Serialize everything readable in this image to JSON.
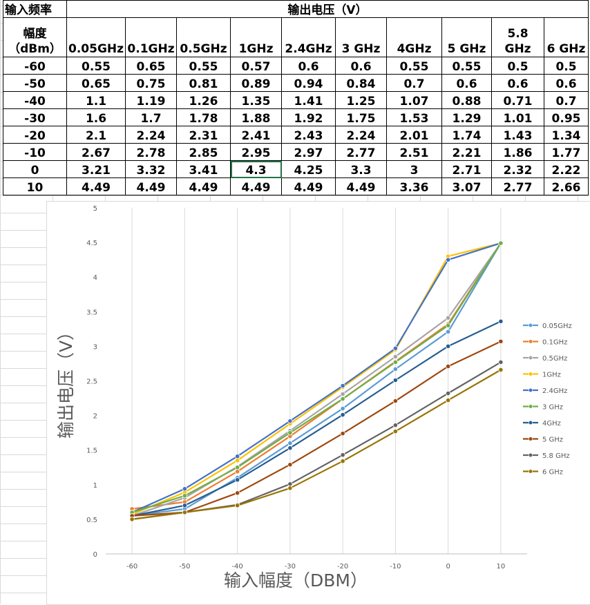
{
  "table": {
    "header_input": "输入频率",
    "header_output": "输出电压（V）",
    "row_header": "幅度（dBm）",
    "frequencies": [
      "0.05GHz",
      "0.1GHz",
      "0.5GHz",
      "1GHz",
      "2.4GHz",
      "3 GHz",
      "4GHz",
      "5 GHz",
      "5.8 GHz",
      "6 GHz"
    ],
    "rows": [
      {
        "amp": "-60",
        "values": [
          "0.55",
          "0.65",
          "0.55",
          "0.57",
          "0.6",
          "0.6",
          "0.55",
          "0.55",
          "0.5",
          "0.5"
        ]
      },
      {
        "amp": "-50",
        "values": [
          "0.65",
          "0.75",
          "0.81",
          "0.89",
          "0.94",
          "0.84",
          "0.7",
          "0.6",
          "0.6",
          "0.6"
        ]
      },
      {
        "amp": "-40",
        "values": [
          "1.1",
          "1.19",
          "1.26",
          "1.35",
          "1.41",
          "1.25",
          "1.07",
          "0.88",
          "0.71",
          "0.7"
        ]
      },
      {
        "amp": "-30",
        "values": [
          "1.6",
          "1.7",
          "1.78",
          "1.88",
          "1.92",
          "1.75",
          "1.53",
          "1.29",
          "1.01",
          "0.95"
        ]
      },
      {
        "amp": "-20",
        "values": [
          "2.1",
          "2.24",
          "2.31",
          "2.41",
          "2.43",
          "2.24",
          "2.01",
          "1.74",
          "1.43",
          "1.34"
        ]
      },
      {
        "amp": "-10",
        "values": [
          "2.67",
          "2.78",
          "2.85",
          "2.95",
          "2.97",
          "2.77",
          "2.51",
          "2.21",
          "1.86",
          "1.77"
        ]
      },
      {
        "amp": "0",
        "values": [
          "3.21",
          "3.32",
          "3.41",
          "4.3",
          "4.25",
          "3.3",
          "3",
          "2.71",
          "2.32",
          "2.22"
        ]
      },
      {
        "amp": "10",
        "values": [
          "4.49",
          "4.49",
          "4.49",
          "4.49",
          "4.49",
          "4.49",
          "3.36",
          "3.07",
          "2.77",
          "2.66"
        ]
      }
    ],
    "selected_cell": "0,1GHz"
  },
  "chart_data": {
    "type": "line",
    "title": "",
    "xlabel": "输入幅度（DBM）",
    "ylabel": "输出电压（V）",
    "x": [
      -60,
      -50,
      -40,
      -30,
      -20,
      -10,
      0,
      10
    ],
    "x_ticks": [
      "-60",
      "-50",
      "-40",
      "-30",
      "-20",
      "-10",
      "0",
      "10"
    ],
    "y_ticks": [
      "0",
      "0.5",
      "1",
      "1.5",
      "2",
      "2.5",
      "3",
      "3.5",
      "4",
      "4.5",
      "5"
    ],
    "ylim": [
      0,
      5
    ],
    "grid": "vertical",
    "legend_position": "right",
    "series": [
      {
        "name": "0.05GHz",
        "color": "#5B9BD5",
        "values": [
          0.55,
          0.65,
          1.1,
          1.6,
          2.1,
          2.67,
          3.21,
          4.49
        ]
      },
      {
        "name": "0.1GHz",
        "color": "#ED7D31",
        "values": [
          0.65,
          0.75,
          1.19,
          1.7,
          2.24,
          2.78,
          3.32,
          4.49
        ]
      },
      {
        "name": "0.5GHz",
        "color": "#A5A5A5",
        "values": [
          0.55,
          0.81,
          1.26,
          1.78,
          2.31,
          2.85,
          3.41,
          4.49
        ]
      },
      {
        "name": "1GHz",
        "color": "#FFC000",
        "values": [
          0.57,
          0.89,
          1.35,
          1.88,
          2.41,
          2.95,
          4.3,
          4.49
        ]
      },
      {
        "name": "2.4GHz",
        "color": "#4472C4",
        "values": [
          0.6,
          0.94,
          1.41,
          1.92,
          2.43,
          2.97,
          4.25,
          4.49
        ]
      },
      {
        "name": "3 GHz",
        "color": "#70AD47",
        "values": [
          0.6,
          0.84,
          1.25,
          1.75,
          2.24,
          2.77,
          3.3,
          4.49
        ]
      },
      {
        "name": "4GHz",
        "color": "#255E91",
        "values": [
          0.55,
          0.7,
          1.07,
          1.53,
          2.01,
          2.51,
          3,
          3.36
        ]
      },
      {
        "name": "5 GHz",
        "color": "#9E480E",
        "values": [
          0.55,
          0.6,
          0.88,
          1.29,
          1.74,
          2.21,
          2.71,
          3.07
        ]
      },
      {
        "name": "5.8 GHz",
        "color": "#636363",
        "values": [
          0.5,
          0.6,
          0.71,
          1.01,
          1.43,
          1.86,
          2.32,
          2.77
        ]
      },
      {
        "name": "6 GHz",
        "color": "#997300",
        "values": [
          0.5,
          0.6,
          0.7,
          0.95,
          1.34,
          1.77,
          2.22,
          2.66
        ]
      }
    ]
  }
}
